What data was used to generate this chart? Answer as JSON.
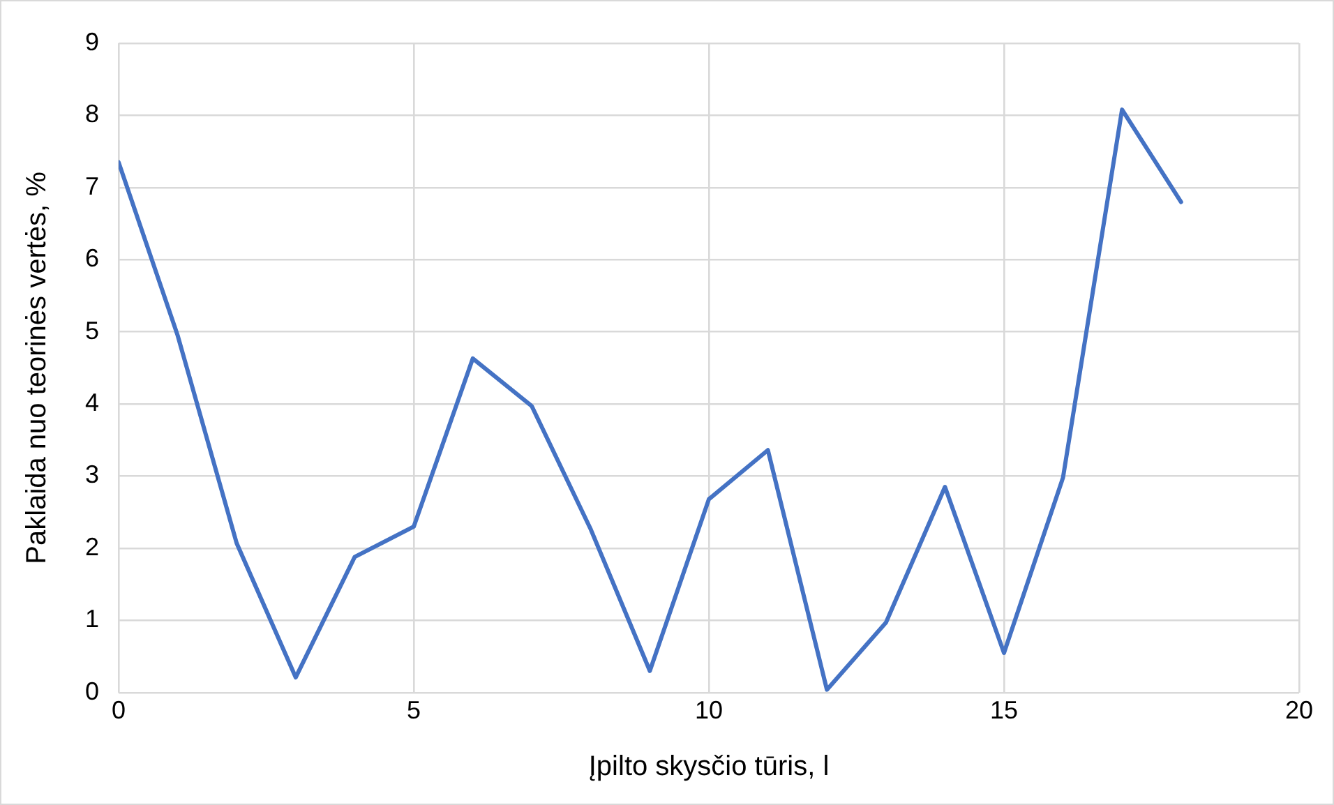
{
  "chart_data": {
    "type": "line",
    "xlabel": "Įpilto skysčio tūris, l",
    "ylabel": "Paklaida nuo teorinės vertės, %",
    "x": [
      0,
      1,
      2,
      3,
      4,
      5,
      6,
      7,
      8,
      9,
      10,
      11,
      12,
      13,
      14,
      15,
      16,
      17,
      18
    ],
    "series": [
      {
        "color": "#4472c4",
        "values": [
          7.35,
          4.95,
          2.07,
          0.21,
          1.88,
          2.3,
          4.63,
          3.97,
          2.26,
          0.3,
          2.68,
          3.36,
          0.04,
          0.97,
          2.85,
          0.55,
          2.98,
          8.08,
          6.8
        ]
      }
    ],
    "xlim": [
      0,
      20
    ],
    "xticks": [
      0,
      5,
      10,
      15,
      20
    ],
    "ylim": [
      0,
      9
    ],
    "yticks": [
      0,
      1,
      2,
      3,
      4,
      5,
      6,
      7,
      8,
      9
    ],
    "grid": true,
    "legend": false,
    "marker": "none",
    "line_style": "solid"
  }
}
